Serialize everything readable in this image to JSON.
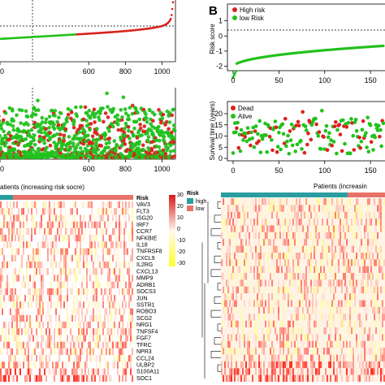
{
  "panel_label": "B",
  "chart_data": [
    {
      "type": "scatter",
      "id": "left-risk-score",
      "xlim": [
        0,
        1100
      ],
      "ylim": [
        -3,
        4
      ],
      "x_ticks": [
        "0",
        "600",
        "800",
        "1000"
      ],
      "cutoff_x": 535,
      "cutoff_y": 0.05,
      "n_points": 1070,
      "series_colors": {
        "low": "#22c11d",
        "high": "#d9231e"
      }
    },
    {
      "type": "scatter",
      "id": "left-survival",
      "xlim": [
        0,
        1100
      ],
      "ylim": [
        0,
        30
      ],
      "x_ticks": [
        "0",
        "600",
        "800",
        "1000"
      ],
      "cutoff_x": 535,
      "n_points": 1070
    },
    {
      "type": "scatter",
      "id": "right-risk-score",
      "ylabel": "Risk score",
      "xlim": [
        -5,
        165
      ],
      "ylim": [
        -3,
        2
      ],
      "y_ticks": [
        "1",
        "0",
        "-1",
        "-2"
      ],
      "x_ticks": [
        "0",
        "50",
        "100",
        "150"
      ],
      "cutoff_y": -0.6,
      "series": [
        {
          "name": "High risk",
          "color": "#d9231e"
        },
        {
          "name": "low Risk",
          "color": "#22c11d"
        }
      ],
      "n_points": 165
    },
    {
      "type": "scatter",
      "id": "right-survival",
      "ylabel": "Survival time (years)",
      "xlim": [
        -5,
        165
      ],
      "ylim": [
        0,
        24
      ],
      "y_ticks": [
        "20",
        "15",
        "10",
        "5",
        "0"
      ],
      "x_ticks": [
        "0",
        "50",
        "100",
        "150"
      ],
      "series": [
        {
          "name": "Dead",
          "color": "#d9231e"
        },
        {
          "name": "Alive",
          "color": "#22c11d"
        }
      ],
      "n_points": 165
    },
    {
      "type": "heatmap",
      "id": "left-heatmap",
      "title": "atients (increasing risk socre)",
      "rows": [
        "VAV3",
        "FLT3",
        "ISG20",
        "IRF7",
        "CCR7",
        "NFKBIE",
        "IL18",
        "TNFRSF8",
        "CXCL9",
        "IL2RG",
        "CXCL13",
        "MMP9",
        "ADRB1",
        "SOCS3",
        "JUN",
        "SSTR1",
        "ROBO3",
        "SCG2",
        "NRG1",
        "TNFSF4",
        "FGF7",
        "TFRC",
        "NPR3",
        "CCL24",
        "ULBP2",
        "S100A11",
        "SOC1"
      ],
      "annotation_label": "Risk",
      "annotation_legend": {
        "title": "Risk",
        "items": [
          "high",
          "low"
        ],
        "colors": [
          "#2a9da0",
          "#e8726a"
        ]
      },
      "color_scale": {
        "ticks": [
          "30",
          "20",
          "10",
          "0",
          "-10",
          "-20",
          "-30"
        ],
        "colors": [
          "#d7191c",
          "#fff7ec",
          "#ffff33"
        ]
      }
    },
    {
      "type": "heatmap",
      "id": "right-heatmap",
      "title": "Patients (increasin"
    }
  ]
}
